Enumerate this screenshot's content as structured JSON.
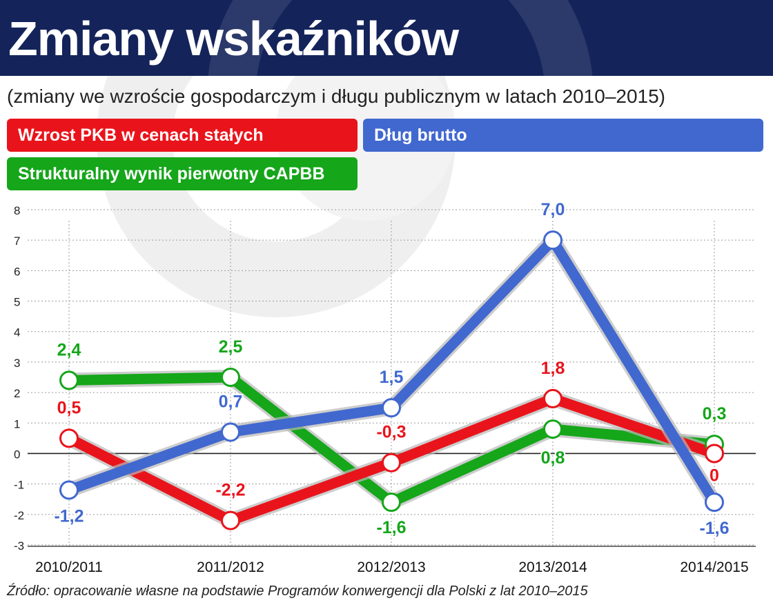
{
  "header": {
    "title": "Zmiany wskaźników",
    "subtitle": "(zmiany we wzroście gospodarczym i długu publicznym w latach 2010–2015)"
  },
  "legend": {
    "pkb": "Wzrost PKB w cenach stałych",
    "dlug": "Dług brutto",
    "capbb": "Strukturalny wynik pierwotny CAPBB"
  },
  "source": "Źródło: opracowanie własne na podstawie Programów konwergencji dla Polski z lat 2010–2015",
  "chart_data": {
    "type": "line",
    "categories": [
      "2010/2011",
      "2011/2012",
      "2012/2013",
      "2013/2014",
      "2014/2015"
    ],
    "ylim": [
      -3,
      8
    ],
    "yticks": [
      8,
      7,
      6,
      5,
      4,
      3,
      2,
      1,
      0,
      -1,
      -2,
      -3
    ],
    "grid": true,
    "series": [
      {
        "key": "capbb",
        "name": "Strukturalny wynik pierwotny CAPBB",
        "color": "#15a61a",
        "values": [
          2.4,
          2.5,
          -1.6,
          0.8,
          0.3
        ],
        "labels": [
          "2,4",
          "2,5",
          "-1,6",
          "0,8",
          "0,3"
        ]
      },
      {
        "key": "pkb",
        "name": "Wzrost PKB w cenach stałych",
        "color": "#e9141b",
        "values": [
          0.5,
          -2.2,
          -0.3,
          1.8,
          0
        ],
        "labels": [
          "0,5",
          "-2,2",
          "-0,3",
          "1,8",
          "0"
        ]
      },
      {
        "key": "dlug",
        "name": "Dług brutto",
        "color": "#4168cf",
        "values": [
          -1.2,
          0.7,
          1.5,
          7.0,
          -1.6
        ],
        "labels": [
          "-1,2",
          "0,7",
          "1,5",
          "7,0",
          "-1,6"
        ]
      }
    ]
  }
}
